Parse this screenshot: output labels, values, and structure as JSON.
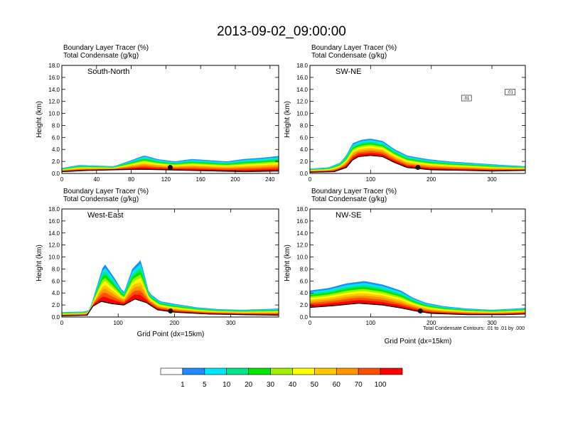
{
  "figure_title": "2013-09-02_09:00:00",
  "x_axis_label": "Grid Point (dx=15km)",
  "y_axis_label": "Height (km)",
  "contour_note": "Total Condensate Contours: .01 to .01 by .000",
  "colorbar": {
    "labels": [
      "1",
      "5",
      "10",
      "20",
      "30",
      "40",
      "50",
      "60",
      "70",
      "100"
    ],
    "colors": [
      "#ffffff",
      "#1e8cff",
      "#00e6ff",
      "#00e68c",
      "#00e600",
      "#a0f000",
      "#ffff00",
      "#ffc800",
      "#ff9600",
      "#ff5000",
      "#ff0000"
    ]
  },
  "chart_data": [
    {
      "type": "heatmap",
      "title": "South-North",
      "header_line1": "Boundary Layer Tracer   (%)",
      "header_line2": "Total Condensate   (g/kg)",
      "xlim": [
        0,
        250
      ],
      "xticks": [
        "0",
        "40",
        "80",
        "120",
        "160",
        "200",
        "240"
      ],
      "xtick_values": [
        0,
        40,
        80,
        120,
        160,
        200,
        240
      ],
      "ylim": [
        0,
        18
      ],
      "yticks": [
        "0.0",
        "2.0",
        "4.0",
        "6.0",
        "8.0",
        "10.0",
        "12.0",
        "14.0",
        "16.0",
        "18.0"
      ],
      "tracer_top_km": [
        [
          0,
          0.9
        ],
        [
          20,
          1.4
        ],
        [
          40,
          1.3
        ],
        [
          60,
          1.2
        ],
        [
          80,
          2.2
        ],
        [
          95,
          3.0
        ],
        [
          110,
          2.4
        ],
        [
          130,
          2.0
        ],
        [
          150,
          2.4
        ],
        [
          170,
          2.2
        ],
        [
          190,
          2.0
        ],
        [
          210,
          2.4
        ],
        [
          230,
          2.6
        ],
        [
          250,
          2.9
        ]
      ],
      "terrain_km": [
        [
          0,
          0.3
        ],
        [
          30,
          0.5
        ],
        [
          60,
          0.6
        ],
        [
          90,
          0.7
        ],
        [
          120,
          0.6
        ],
        [
          150,
          0.5
        ],
        [
          180,
          0.4
        ],
        [
          210,
          0.3
        ],
        [
          250,
          0.4
        ]
      ],
      "marker": [
        125,
        1.0
      ]
    },
    {
      "type": "heatmap",
      "title": "SW-NE",
      "header_line1": "Boundary Layer Tracer   (%)",
      "header_line2": "Total Condensate   (g/kg)",
      "xlim": [
        0,
        355
      ],
      "xticks": [
        "0",
        "100",
        "200",
        "300"
      ],
      "xtick_values": [
        0,
        100,
        200,
        300
      ],
      "ylim": [
        0,
        18
      ],
      "yticks": [
        "0.0",
        "2.0",
        "4.0",
        "6.0",
        "8.0",
        "10.0",
        "12.0",
        "14.0",
        "16.0",
        "18.0"
      ],
      "tracer_top_km": [
        [
          0,
          0.8
        ],
        [
          30,
          1.0
        ],
        [
          50,
          1.8
        ],
        [
          60,
          3.0
        ],
        [
          70,
          5.0
        ],
        [
          85,
          5.6
        ],
        [
          100,
          5.8
        ],
        [
          120,
          5.4
        ],
        [
          140,
          4.0
        ],
        [
          160,
          3.0
        ],
        [
          180,
          2.6
        ],
        [
          200,
          2.3
        ],
        [
          230,
          2.0
        ],
        [
          260,
          1.8
        ],
        [
          290,
          1.6
        ],
        [
          320,
          1.4
        ],
        [
          355,
          1.2
        ]
      ],
      "terrain_km": [
        [
          0,
          0.2
        ],
        [
          40,
          0.3
        ],
        [
          60,
          1.0
        ],
        [
          70,
          2.2
        ],
        [
          80,
          2.8
        ],
        [
          100,
          3.0
        ],
        [
          120,
          2.8
        ],
        [
          140,
          1.8
        ],
        [
          160,
          1.0
        ],
        [
          200,
          0.6
        ],
        [
          260,
          0.5
        ],
        [
          300,
          0.4
        ],
        [
          355,
          0.5
        ]
      ],
      "marker": [
        178,
        1.0
      ],
      "contour_labels": [
        ".01",
        ".01"
      ]
    },
    {
      "type": "heatmap",
      "title": "West-East",
      "header_line1": "Boundary Layer Tracer   (%)",
      "header_line2": "Total Condensate   (g/kg)",
      "xlim": [
        0,
        385
      ],
      "xticks": [
        "0",
        "100",
        "200",
        "300"
      ],
      "xtick_values": [
        0,
        100,
        200,
        300
      ],
      "ylim": [
        0,
        18
      ],
      "yticks": [
        "0.0",
        "2.0",
        "4.0",
        "6.0",
        "8.0",
        "10.0",
        "12.0",
        "14.0",
        "16.0",
        "18.0"
      ],
      "tracer_top_km": [
        [
          0,
          0.8
        ],
        [
          40,
          0.9
        ],
        [
          50,
          1.2
        ],
        [
          55,
          3.0
        ],
        [
          65,
          6.0
        ],
        [
          75,
          9.0
        ],
        [
          90,
          7.0
        ],
        [
          110,
          4.0
        ],
        [
          125,
          8.0
        ],
        [
          140,
          9.5
        ],
        [
          155,
          4.0
        ],
        [
          175,
          2.6
        ],
        [
          200,
          2.2
        ],
        [
          240,
          1.6
        ],
        [
          280,
          1.3
        ],
        [
          320,
          1.2
        ],
        [
          385,
          1.4
        ]
      ],
      "terrain_km": [
        [
          0,
          0.2
        ],
        [
          45,
          0.3
        ],
        [
          55,
          1.8
        ],
        [
          70,
          2.6
        ],
        [
          90,
          2.2
        ],
        [
          110,
          2.0
        ],
        [
          130,
          3.0
        ],
        [
          150,
          2.4
        ],
        [
          170,
          1.2
        ],
        [
          200,
          0.8
        ],
        [
          260,
          0.5
        ],
        [
          320,
          0.4
        ],
        [
          385,
          0.3
        ]
      ],
      "marker": [
        193,
        1.0
      ]
    },
    {
      "type": "heatmap",
      "title": "NW-SE",
      "header_line1": "Boundary Layer Tracer   (%)",
      "header_line2": "Total Condensate   (g/kg)",
      "xlim": [
        0,
        355
      ],
      "xticks": [
        "0",
        "100",
        "200",
        "300"
      ],
      "xtick_values": [
        0,
        100,
        200,
        300
      ],
      "ylim": [
        0,
        18
      ],
      "yticks": [
        "0.0",
        "2.0",
        "4.0",
        "6.0",
        "8.0",
        "10.0",
        "12.0",
        "14.0",
        "16.0",
        "18.0"
      ],
      "tracer_top_km": [
        [
          0,
          4.4
        ],
        [
          30,
          4.8
        ],
        [
          60,
          5.6
        ],
        [
          90,
          6.0
        ],
        [
          120,
          5.4
        ],
        [
          150,
          4.4
        ],
        [
          170,
          3.2
        ],
        [
          190,
          2.4
        ],
        [
          220,
          1.8
        ],
        [
          260,
          1.4
        ],
        [
          300,
          1.2
        ],
        [
          355,
          1.5
        ]
      ],
      "terrain_km": [
        [
          0,
          1.6
        ],
        [
          40,
          1.9
        ],
        [
          80,
          2.3
        ],
        [
          120,
          2.0
        ],
        [
          150,
          1.5
        ],
        [
          175,
          1.0
        ],
        [
          200,
          0.6
        ],
        [
          260,
          0.4
        ],
        [
          320,
          0.4
        ],
        [
          355,
          0.5
        ]
      ],
      "marker": [
        182,
        1.0
      ]
    }
  ]
}
